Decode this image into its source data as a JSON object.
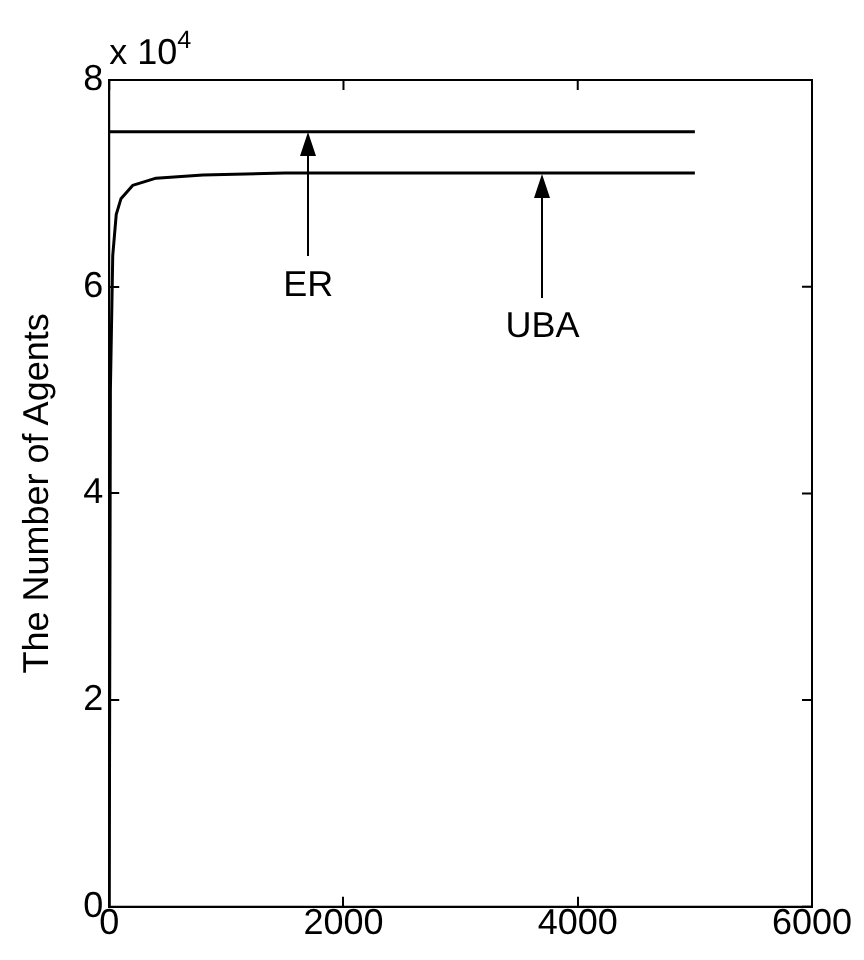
{
  "chart_data": {
    "type": "line",
    "ylabel": "The Number of Agents",
    "xlim": [
      0,
      6000
    ],
    "xticks": [
      0,
      2000,
      4000,
      6000
    ],
    "ylim": [
      0,
      8
    ],
    "yticks": [
      0,
      2,
      4,
      6,
      8
    ],
    "grid": false,
    "legend": false,
    "marker": "none",
    "line_style": "solid",
    "series": [
      {
        "color": "#000000",
        "x": [
          0,
          5000
        ],
        "values": [
          7.5,
          7.5
        ]
      },
      {
        "color": "#000000",
        "x": [
          0,
          10,
          30,
          60,
          100,
          200,
          400,
          800,
          1500,
          5000
        ],
        "values": [
          0,
          5,
          6.3,
          6.7,
          6.85,
          6.98,
          7.05,
          7.08,
          7.1,
          7.1
        ]
      }
    ],
    "annotations": [
      "x 10$^{4}$",
      "ER",
      "UBA"
    ]
  }
}
